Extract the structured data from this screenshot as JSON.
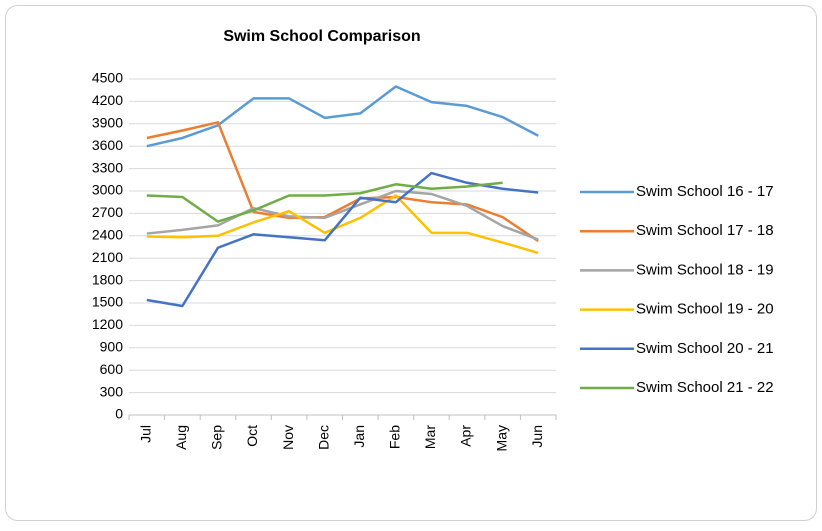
{
  "chart_data": {
    "type": "line",
    "title": "Swim School Comparison",
    "categories": [
      "Jul",
      "Aug",
      "Sep",
      "Oct",
      "Nov",
      "Dec",
      "Jan",
      "Feb",
      "Mar",
      "Apr",
      "May",
      "Jun"
    ],
    "series": [
      {
        "name": "Swim School 16 - 17",
        "color": "#5B9BD5",
        "values": [
          3600,
          3710,
          3880,
          4240,
          4240,
          3980,
          4040,
          4400,
          4190,
          4140,
          3990,
          3740
        ]
      },
      {
        "name": "Swim School 17 - 18",
        "color": "#ED7D31",
        "values": [
          3710,
          3810,
          3920,
          2720,
          2640,
          2650,
          2900,
          2920,
          2850,
          2820,
          2650,
          2330
        ]
      },
      {
        "name": "Swim School 18 - 19",
        "color": "#A5A5A5",
        "values": [
          2430,
          2480,
          2540,
          2770,
          2660,
          2640,
          2820,
          3000,
          2960,
          2800,
          2530,
          2350
        ]
      },
      {
        "name": "Swim School 19 - 20",
        "color": "#FFC000",
        "values": [
          2390,
          2380,
          2400,
          2580,
          2730,
          2440,
          2640,
          2940,
          2440,
          2440,
          2310,
          2170
        ]
      },
      {
        "name": "Swim School 20 - 21",
        "color": "#4472C4",
        "values": [
          1540,
          1460,
          2240,
          2420,
          2380,
          2340,
          2910,
          2850,
          3240,
          3110,
          3030,
          2980
        ]
      },
      {
        "name": "Swim School 21 - 22",
        "color": "#70AD47",
        "values": [
          2940,
          2920,
          2590,
          2740,
          2940,
          2940,
          2970,
          3090,
          3030,
          3060,
          3110,
          null
        ]
      }
    ],
    "ylim": [
      0,
      4500
    ],
    "yticks": [
      0,
      300,
      600,
      900,
      1200,
      1500,
      1800,
      2100,
      2400,
      2700,
      3000,
      3300,
      3600,
      3900,
      4200,
      4500
    ],
    "grid": true,
    "legend": "right"
  }
}
